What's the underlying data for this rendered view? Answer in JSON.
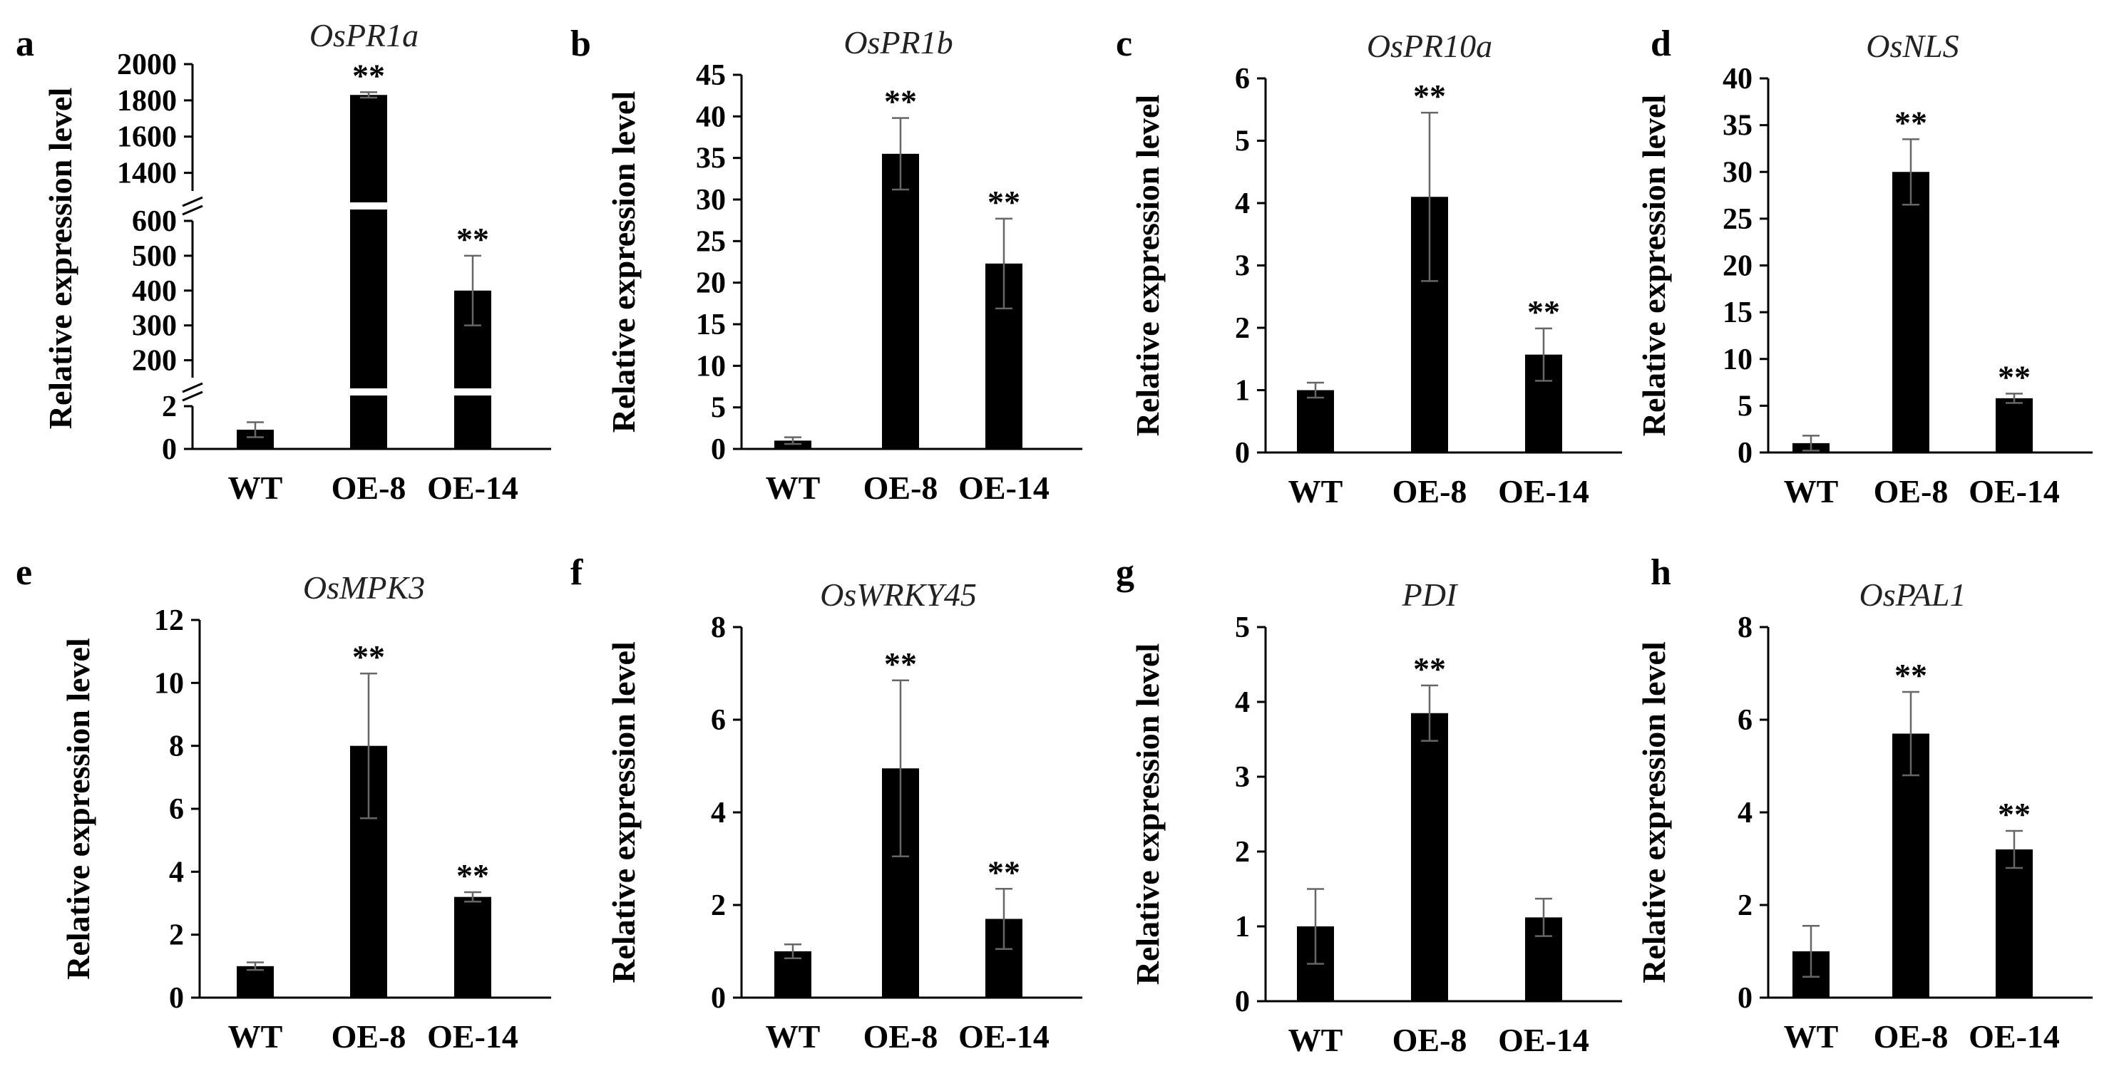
{
  "chart_data": [
    {
      "panel": "a",
      "type": "bar",
      "title": "OsPR1a",
      "ylabel": "Relative expression level",
      "categories": [
        "WT",
        "OE-8",
        "OE-14"
      ],
      "values": [
        0.9,
        1830,
        400
      ],
      "errors": [
        0.35,
        15,
        100
      ],
      "significance": [
        "",
        "**",
        "**"
      ],
      "broken_axis": true,
      "segments": [
        {
          "range": [
            0,
            2
          ],
          "ticks": [
            "0",
            "2"
          ]
        },
        {
          "range": [
            150,
            600
          ],
          "ticks": [
            "200",
            "300",
            "400",
            "500",
            "600"
          ]
        },
        {
          "range": [
            1300,
            2000
          ],
          "ticks": [
            "1400",
            "1600",
            "1800",
            "2000"
          ]
        }
      ]
    },
    {
      "panel": "b",
      "type": "bar",
      "title": "OsPR1b",
      "ylabel": "Relative expression level",
      "categories": [
        "WT",
        "OE-8",
        "OE-14"
      ],
      "values": [
        1.0,
        35.5,
        22.3
      ],
      "errors": [
        0.4,
        4.3,
        5.4
      ],
      "significance": [
        "",
        "**",
        "**"
      ],
      "ylim": [
        0,
        45
      ],
      "yticks": [
        0,
        5,
        10,
        15,
        20,
        25,
        30,
        35,
        40,
        45
      ]
    },
    {
      "panel": "c",
      "type": "bar",
      "title": "OsPR10a",
      "ylabel": "Relative expression level",
      "categories": [
        "WT",
        "OE-8",
        "OE-14"
      ],
      "values": [
        1.0,
        4.1,
        1.57
      ],
      "errors": [
        0.12,
        1.35,
        0.42
      ],
      "significance": [
        "",
        "**",
        "**"
      ],
      "ylim": [
        0,
        6
      ],
      "yticks": [
        0,
        1,
        2,
        3,
        4,
        5,
        6
      ]
    },
    {
      "panel": "d",
      "type": "bar",
      "title": "OsNLS",
      "ylabel": "Relative expression level",
      "categories": [
        "WT",
        "OE-8",
        "OE-14"
      ],
      "values": [
        1.0,
        30.0,
        5.8
      ],
      "errors": [
        0.8,
        3.5,
        0.5
      ],
      "significance": [
        "",
        "**",
        "**"
      ],
      "ylim": [
        0,
        40
      ],
      "yticks": [
        0,
        5,
        10,
        15,
        20,
        25,
        30,
        35,
        40
      ]
    },
    {
      "panel": "e",
      "type": "bar",
      "title": "OsMPK3",
      "ylabel": "Relative expression level",
      "categories": [
        "WT",
        "OE-8",
        "OE-14"
      ],
      "values": [
        1.0,
        8.0,
        3.2
      ],
      "errors": [
        0.12,
        2.3,
        0.15
      ],
      "significance": [
        "",
        "**",
        "**"
      ],
      "ylim": [
        0,
        12
      ],
      "yticks": [
        0,
        2,
        4,
        6,
        8,
        10,
        12
      ]
    },
    {
      "panel": "f",
      "type": "bar",
      "title": "OsWRKY45",
      "ylabel": "Relative expression level",
      "categories": [
        "WT",
        "OE-8",
        "OE-14"
      ],
      "values": [
        1.0,
        4.95,
        1.7
      ],
      "errors": [
        0.15,
        1.9,
        0.65
      ],
      "significance": [
        "",
        "**",
        "**"
      ],
      "ylim": [
        0,
        8
      ],
      "yticks": [
        0,
        2,
        4,
        6,
        8
      ]
    },
    {
      "panel": "g",
      "type": "bar",
      "title": "PDI",
      "ylabel": "Relative expression level",
      "categories": [
        "WT",
        "OE-8",
        "OE-14"
      ],
      "values": [
        1.0,
        3.85,
        1.12
      ],
      "errors": [
        0.5,
        0.37,
        0.25
      ],
      "significance": [
        "",
        "**",
        ""
      ],
      "ylim": [
        0,
        5
      ],
      "yticks": [
        0,
        1,
        2,
        3,
        4,
        5
      ]
    },
    {
      "panel": "h",
      "type": "bar",
      "title": "OsPAL1",
      "ylabel": "Relative expression level",
      "categories": [
        "WT",
        "OE-8",
        "OE-14"
      ],
      "values": [
        1.0,
        5.7,
        3.2
      ],
      "errors": [
        0.55,
        0.9,
        0.4
      ],
      "significance": [
        "",
        "**",
        "**"
      ],
      "ylim": [
        0,
        8
      ],
      "yticks": [
        0,
        2,
        4,
        6,
        8
      ]
    }
  ]
}
